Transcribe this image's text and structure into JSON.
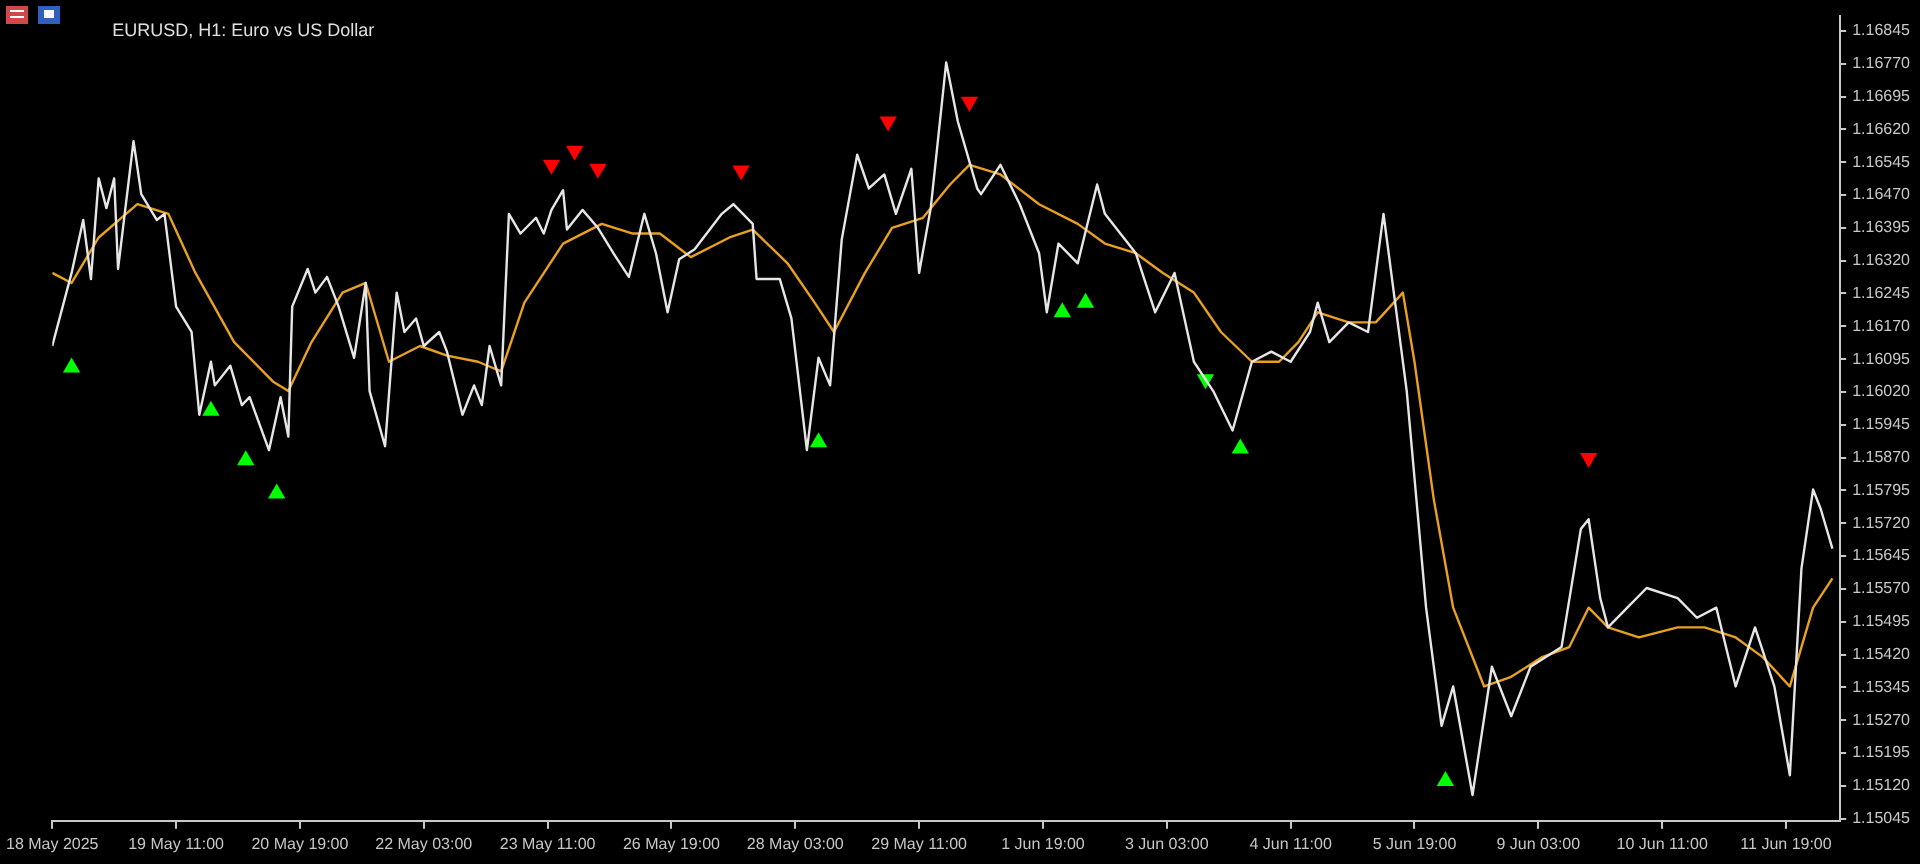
{
  "chart_data": {
    "type": "line",
    "title": "EURUSD, H1: Euro vs US Dollar",
    "categories": [
      "18 May 2025",
      null,
      null,
      null,
      null,
      null,
      null,
      null,
      null,
      null,
      null,
      null,
      null,
      null,
      null,
      null,
      null,
      null,
      null,
      null,
      null,
      null,
      null,
      null,
      null,
      null,
      null,
      null,
      null,
      null,
      null,
      null,
      "19 May 11:00",
      null,
      null,
      null,
      null,
      null,
      null,
      null,
      null,
      null,
      null,
      null,
      null,
      null,
      null,
      null,
      null,
      null,
      null,
      null,
      null,
      null,
      null,
      null,
      null,
      null,
      null,
      null,
      null,
      null,
      null,
      null,
      "20 May 19:00",
      null,
      null,
      null,
      null,
      null,
      null,
      null,
      null,
      null,
      null,
      null,
      null,
      null,
      null,
      null,
      null,
      null,
      null,
      null,
      null,
      null,
      null,
      null,
      null,
      null,
      null,
      null,
      null,
      null,
      null,
      null,
      "22 May 03:00",
      null,
      null,
      null,
      null,
      null,
      null,
      null,
      null,
      null,
      null,
      null,
      null,
      null,
      null,
      null,
      null,
      null,
      null,
      null,
      null,
      null,
      null,
      null,
      null,
      null,
      null,
      null,
      null,
      null,
      null,
      null,
      "23 May 11:00",
      null,
      null,
      null,
      null,
      null,
      null,
      null,
      null,
      null,
      null,
      null,
      null,
      null,
      null,
      null,
      null,
      null,
      null,
      null,
      null,
      null,
      null,
      null,
      null,
      null,
      null,
      null,
      null,
      null,
      null,
      null,
      "26 May 19:00",
      null,
      null,
      null,
      null,
      null,
      null,
      null,
      null,
      null,
      null,
      null,
      null,
      null,
      null,
      null,
      null,
      null,
      null,
      null,
      null,
      null,
      null,
      null,
      null,
      null,
      null,
      null,
      null,
      null,
      null,
      null,
      "28 May 03:00",
      null,
      null,
      null,
      null,
      null,
      null,
      null,
      null,
      null,
      null,
      null,
      null,
      null,
      null,
      null,
      null,
      null,
      null,
      null,
      null,
      null,
      null,
      null,
      null,
      null,
      null,
      null,
      null,
      null,
      null,
      null,
      "29 May 11:00",
      null,
      null,
      null,
      null,
      null,
      null,
      null,
      null,
      null,
      null,
      null,
      null,
      null,
      null,
      null,
      null,
      null,
      null,
      null,
      null,
      null,
      null,
      null,
      null,
      null,
      null,
      null,
      null,
      null,
      null,
      null,
      "1 Jun 19:00",
      null,
      null,
      null,
      null,
      null,
      null,
      null,
      null,
      null,
      null,
      null,
      null,
      null,
      null,
      null,
      null,
      null,
      null,
      null,
      null,
      null,
      null,
      null,
      null,
      null,
      null,
      null,
      null,
      null,
      null,
      null,
      "3 Jun 03:00",
      null,
      null,
      null,
      null,
      null,
      null,
      null,
      null,
      null,
      null,
      null,
      null,
      null,
      null,
      null,
      null,
      null,
      null,
      null,
      null,
      null,
      null,
      null,
      null,
      null,
      null,
      null,
      null,
      null,
      null,
      null,
      "4 Jun 11:00",
      null,
      null,
      null,
      null,
      null,
      null,
      null,
      null,
      null,
      null,
      null,
      null,
      null,
      null,
      null,
      null,
      null,
      null,
      null,
      null,
      null,
      null,
      null,
      null,
      null,
      null,
      null,
      null,
      null,
      null,
      null,
      "5 Jun 19:00",
      null,
      null,
      null,
      null,
      null,
      null,
      null,
      null,
      null,
      null,
      null,
      null,
      null,
      null,
      null,
      null,
      null,
      null,
      null,
      null,
      null,
      null,
      null,
      null,
      null,
      null,
      null,
      null,
      null,
      null,
      null,
      "9 Jun 03:00",
      null,
      null,
      null,
      null,
      null,
      null,
      null,
      null,
      null,
      null,
      null,
      null,
      null,
      null,
      null,
      null,
      null,
      null,
      null,
      null,
      null,
      null,
      null,
      null,
      null,
      null,
      null,
      null,
      null,
      null,
      null,
      "10 Jun 11:00",
      null,
      null,
      null,
      null,
      null,
      null,
      null,
      null,
      null,
      null,
      null,
      null,
      null,
      null,
      null,
      null,
      null,
      null,
      null,
      null,
      null,
      null,
      null,
      null,
      null,
      null,
      null,
      null,
      null,
      null,
      null,
      "11 Jun 19:00",
      null,
      null,
      null,
      null,
      null,
      null,
      null,
      null,
      null,
      null,
      null,
      null,
      null
    ],
    "ylim": [
      1.1504,
      1.1688
    ],
    "yticks": [
      1.16845,
      {
        "value": 1.1677,
        "label": "1.16770"
      },
      1.16695,
      {
        "value": 1.1662,
        "label": "1.16620"
      },
      1.16545,
      {
        "value": 1.1647,
        "label": "1.16470"
      },
      1.16395,
      {
        "value": 1.1632,
        "label": "1.16320"
      },
      1.16245,
      {
        "value": 1.1617,
        "label": "1.16170"
      },
      1.16095,
      {
        "value": 1.1602,
        "label": "1.16020"
      },
      1.15945,
      {
        "value": 1.1587,
        "label": "1.15870"
      },
      1.15795,
      {
        "value": 1.1572,
        "label": "1.15720"
      },
      1.15645,
      {
        "value": 1.1557,
        "label": "1.15570"
      },
      1.15495,
      {
        "value": 1.1542,
        "label": "1.15420"
      },
      1.15345,
      {
        "value": 1.1527,
        "label": "1.15270"
      },
      1.15195,
      {
        "value": 1.1512,
        "label": "1.15120"
      },
      1.15045
    ],
    "grid": false,
    "marker": "none",
    "line_style": "solid",
    "series": [
      {
        "color": "#e6e6e6",
        "values": [
          1.16125,
          null,
          null,
          null,
          null,
          1.16292,
          null,
          null,
          1.16413,
          null,
          1.16278,
          null,
          1.16508,
          null,
          1.1644,
          null,
          1.16508,
          1.16301,
          null,
          null,
          null,
          1.16593,
          null,
          1.16472,
          null,
          null,
          null,
          1.16413,
          null,
          1.16427,
          null,
          null,
          1.16215,
          null,
          null,
          null,
          1.16157,
          null,
          1.15968,
          null,
          null,
          1.16089,
          1.16035,
          null,
          null,
          null,
          1.1608,
          null,
          null,
          1.1599,
          null,
          1.16008,
          null,
          null,
          null,
          null,
          1.15887,
          null,
          null,
          1.16008,
          null,
          1.15918,
          1.16215,
          null,
          null,
          null,
          1.16301,
          null,
          1.16247,
          null,
          null,
          1.16283,
          null,
          null,
          1.16215,
          null,
          null,
          null,
          1.16098,
          null,
          null,
          1.16269,
          1.16022,
          null,
          null,
          null,
          1.15896,
          null,
          null,
          1.16247,
          null,
          1.16157,
          null,
          null,
          1.16188,
          null,
          1.16125,
          null,
          null,
          null,
          1.16157,
          null,
          1.16112,
          null,
          null,
          null,
          1.15968,
          null,
          null,
          1.16035,
          null,
          1.1599,
          null,
          1.16125,
          null,
          null,
          1.16035,
          null,
          1.16427,
          null,
          null,
          1.16382,
          null,
          null,
          null,
          1.16418,
          null,
          1.16382,
          null,
          1.16436,
          null,
          null,
          1.16481,
          1.16391,
          null,
          null,
          null,
          1.16436,
          null,
          null,
          null,
          1.16395,
          null,
          null,
          null,
          1.16337,
          null,
          null,
          null,
          1.16283,
          null,
          null,
          null,
          1.16427,
          null,
          null,
          1.16337,
          null,
          null,
          1.16202,
          null,
          null,
          1.16323,
          null,
          null,
          null,
          1.16346,
          null,
          null,
          null,
          null,
          null,
          null,
          1.16427,
          null,
          null,
          1.16449,
          null,
          null,
          null,
          null,
          1.16404,
          1.16278,
          null,
          null,
          null,
          null,
          null,
          1.16278,
          null,
          null,
          1.16188,
          null,
          null,
          null,
          1.15887,
          null,
          null,
          1.16098,
          null,
          null,
          1.16035,
          null,
          null,
          1.16368,
          null,
          null,
          null,
          1.16562,
          null,
          null,
          1.16485,
          null,
          null,
          null,
          1.16517,
          null,
          null,
          1.16427,
          null,
          null,
          null,
          1.1653,
          null,
          1.16292,
          null,
          null,
          1.1644,
          null,
          null,
          null,
          1.16773,
          null,
          null,
          1.16638,
          null,
          null,
          null,
          null,
          1.16485,
          1.16472,
          null,
          null,
          null,
          null,
          1.16539,
          null,
          null,
          null,
          null,
          1.16449,
          null,
          null,
          null,
          null,
          1.16337,
          null,
          1.16202,
          null,
          null,
          1.16359,
          null,
          null,
          null,
          null,
          1.16314,
          null,
          null,
          null,
          null,
          1.16494,
          null,
          1.16427,
          null,
          null,
          null,
          1.16382,
          null,
          null,
          null,
          1.16337,
          null,
          null,
          null,
          null,
          1.16202,
          null,
          null,
          null,
          null,
          1.16292,
          null,
          null,
          null,
          null,
          1.16089,
          null,
          null,
          null,
          null,
          1.16022,
          null,
          null,
          null,
          null,
          1.15932,
          null,
          null,
          null,
          null,
          1.16089,
          null,
          null,
          null,
          null,
          1.16112,
          null,
          null,
          null,
          null,
          1.16089,
          null,
          null,
          null,
          null,
          1.16157,
          null,
          1.16224,
          null,
          null,
          1.16134,
          null,
          null,
          null,
          null,
          1.16179,
          null,
          null,
          null,
          null,
          1.16157,
          null,
          null,
          null,
          1.16427,
          null,
          null,
          1.16224,
          null,
          null,
          1.16022,
          null,
          null,
          null,
          null,
          1.15527,
          null,
          null,
          null,
          1.15257,
          null,
          null,
          1.15347,
          null,
          null,
          null,
          null,
          1.15099,
          null,
          null,
          null,
          null,
          1.15392,
          null,
          null,
          null,
          null,
          1.15279,
          null,
          null,
          null,
          null,
          1.15392,
          null,
          null,
          null,
          null,
          null,
          null,
          null,
          1.15437,
          null,
          null,
          null,
          null,
          1.15707,
          null,
          1.15729,
          null,
          null,
          1.15549,
          null,
          1.15482,
          null,
          null,
          null,
          null,
          1.15527,
          null,
          null,
          null,
          null,
          1.15572,
          null,
          null,
          null,
          null,
          null,
          null,
          null,
          1.15549,
          null,
          null,
          null,
          null,
          1.15504,
          null,
          null,
          null,
          null,
          1.15527,
          null,
          null,
          null,
          null,
          1.15347,
          null,
          null,
          null,
          null,
          1.15482,
          null,
          null,
          null,
          null,
          1.15347,
          null,
          null,
          null,
          1.15144,
          null,
          null,
          1.15617,
          null,
          null,
          1.15797,
          null,
          1.15752,
          null,
          null,
          1.15662,
          null
        ]
      },
      {
        "color": "#e8a020",
        "values": [
          1.16292,
          null,
          null,
          null,
          null,
          1.16269,
          null,
          null,
          null,
          null,
          null,
          null,
          1.16373,
          null,
          null,
          null,
          null,
          null,
          null,
          null,
          null,
          null,
          1.16449,
          null,
          null,
          null,
          null,
          null,
          null,
          null,
          1.16427,
          null,
          null,
          null,
          null,
          null,
          null,
          1.16292,
          null,
          null,
          null,
          null,
          null,
          null,
          null,
          null,
          null,
          1.16134,
          null,
          null,
          null,
          null,
          null,
          null,
          null,
          null,
          null,
          1.16044,
          null,
          null,
          null,
          1.16022,
          null,
          null,
          null,
          null,
          null,
          1.16134,
          null,
          null,
          null,
          null,
          null,
          null,
          null,
          1.16247,
          null,
          null,
          null,
          null,
          null,
          1.16269,
          null,
          null,
          null,
          null,
          null,
          1.16089,
          null,
          null,
          null,
          null,
          null,
          null,
          null,
          1.16125,
          null,
          null,
          null,
          null,
          null,
          null,
          1.16103,
          null,
          null,
          null,
          null,
          null,
          null,
          null,
          1.16089,
          null,
          null,
          null,
          null,
          null,
          1.16067,
          null,
          null,
          null,
          null,
          null,
          1.16224,
          null,
          null,
          null,
          null,
          null,
          null,
          null,
          null,
          null,
          1.16359,
          null,
          null,
          null,
          null,
          null,
          null,
          null,
          null,
          null,
          1.16404,
          null,
          null,
          null,
          null,
          null,
          null,
          null,
          1.16382,
          null,
          null,
          null,
          null,
          null,
          null,
          1.16382,
          null,
          null,
          null,
          null,
          null,
          null,
          null,
          1.16328,
          null,
          null,
          null,
          null,
          null,
          null,
          null,
          null,
          null,
          1.16373,
          null,
          null,
          null,
          null,
          null,
          1.16391,
          null,
          null,
          null,
          null,
          null,
          null,
          null,
          null,
          1.16314,
          null,
          null,
          null,
          null,
          null,
          null,
          1.16224,
          null,
          null,
          null,
          null,
          1.16157,
          null,
          null,
          null,
          null,
          null,
          null,
          null,
          1.16292,
          null,
          null,
          null,
          null,
          null,
          null,
          1.16395,
          null,
          null,
          null,
          null,
          null,
          null,
          null,
          1.16418,
          null,
          null,
          null,
          null,
          null,
          null,
          1.16494,
          null,
          null,
          null,
          null,
          1.16539,
          null,
          null,
          null,
          null,
          null,
          null,
          null,
          1.16517,
          null,
          null,
          null,
          null,
          null,
          null,
          null,
          null,
          null,
          1.16449,
          null,
          null,
          null,
          null,
          null,
          null,
          null,
          null,
          null,
          1.16404,
          null,
          null,
          null,
          null,
          null,
          null,
          1.16359,
          null,
          null,
          null,
          null,
          null,
          null,
          null,
          1.16337,
          null,
          null,
          null,
          null,
          null,
          null,
          1.16292,
          null,
          null,
          null,
          null,
          null,
          null,
          null,
          1.16247,
          null,
          null,
          null,
          null,
          null,
          null,
          1.16157,
          null,
          null,
          null,
          null,
          null,
          null,
          null,
          1.16089,
          null,
          null,
          null,
          null,
          null,
          null,
          1.16089,
          null,
          null,
          null,
          null,
          1.16134,
          null,
          null,
          null,
          null,
          1.16202,
          null,
          null,
          null,
          null,
          null,
          null,
          null,
          1.16179,
          null,
          null,
          null,
          null,
          null,
          null,
          1.16179,
          null,
          null,
          null,
          null,
          null,
          null,
          1.16247,
          null,
          null,
          1.16089,
          null,
          null,
          null,
          null,
          1.15774,
          null,
          null,
          null,
          null,
          1.15527,
          null,
          null,
          null,
          null,
          null,
          null,
          null,
          1.15347,
          null,
          null,
          null,
          null,
          null,
          null,
          1.15369,
          null,
          null,
          null,
          null,
          null,
          null,
          null,
          1.15414,
          null,
          null,
          null,
          null,
          null,
          null,
          1.15437,
          null,
          null,
          null,
          null,
          1.15527,
          null,
          null,
          null,
          null,
          1.15482,
          null,
          null,
          null,
          null,
          null,
          null,
          null,
          1.15459,
          null,
          null,
          null,
          null,
          null,
          null,
          null,
          null,
          null,
          1.15482,
          null,
          null,
          null,
          null,
          null,
          null,
          1.15482,
          null,
          null,
          null,
          null,
          null,
          null,
          null,
          1.15459,
          null,
          null,
          null,
          null,
          null,
          null,
          1.15414,
          null,
          null,
          null,
          null,
          null,
          null,
          1.15347,
          null,
          null,
          null,
          null,
          null,
          1.15527,
          null,
          null,
          null,
          null,
          1.15594,
          null
        ]
      },
      {
        "type": "scatter",
        "marker": "triangle",
        "color": "#00ff00",
        "values": [
          null,
          null,
          null,
          null,
          null,
          1.16076,
          null,
          null,
          null,
          null,
          null,
          null,
          null,
          null,
          null,
          null,
          null,
          null,
          null,
          null,
          null,
          null,
          null,
          null,
          null,
          null,
          null,
          null,
          null,
          null,
          null,
          null,
          null,
          null,
          null,
          null,
          null,
          null,
          null,
          null,
          null,
          1.15977,
          null,
          null,
          null,
          null,
          null,
          null,
          null,
          null,
          1.15864,
          null,
          null,
          null,
          null,
          null,
          null,
          null,
          1.15788,
          null,
          null,
          null,
          null,
          null,
          null,
          null,
          null,
          null,
          null,
          null,
          null,
          null,
          null,
          null,
          null,
          null,
          null,
          null,
          null,
          null,
          null,
          null,
          null,
          null,
          null,
          null,
          null,
          null,
          null,
          null,
          null,
          null,
          null,
          null,
          null,
          null,
          null,
          null,
          null,
          null,
          null,
          null,
          null,
          null,
          null,
          null,
          null,
          null,
          null,
          null,
          null,
          null,
          null,
          null,
          null,
          null,
          null,
          null,
          null,
          null,
          null,
          null,
          null,
          null,
          null,
          null,
          null,
          null,
          null,
          null,
          null,
          null,
          null,
          null,
          null,
          null,
          null,
          null,
          null,
          null,
          null,
          null,
          null,
          null,
          null,
          null,
          null,
          null,
          null,
          null,
          null,
          null,
          null,
          null,
          null,
          null,
          null,
          null,
          null,
          null,
          null,
          null,
          null,
          null,
          null,
          null,
          null,
          null,
          null,
          null,
          null,
          null,
          null,
          null,
          null,
          null,
          null,
          null,
          null,
          null,
          null,
          null,
          null,
          null,
          null,
          null,
          null,
          null,
          null,
          null,
          null,
          null,
          null,
          null,
          null,
          null,
          null,
          null,
          1.15905,
          null,
          null,
          null,
          null,
          null,
          null,
          null,
          null,
          null,
          null,
          null,
          null,
          null,
          null,
          null,
          null,
          null,
          null,
          null,
          null,
          null,
          null,
          null,
          null,
          null,
          null,
          null,
          null,
          null,
          null,
          null,
          null,
          null,
          null,
          null,
          null,
          null,
          null,
          null,
          null,
          null,
          null,
          null,
          null,
          null,
          null,
          null,
          null,
          null,
          null,
          null,
          null,
          null,
          null,
          null,
          null,
          null,
          null,
          null,
          null,
          null,
          null,
          1.16202,
          null,
          null,
          null,
          null,
          null,
          1.16224,
          null,
          null,
          null,
          null,
          null,
          null,
          null,
          null,
          null,
          null,
          null,
          null,
          null,
          null,
          null,
          null,
          null,
          null,
          null,
          null,
          null,
          null,
          null,
          null,
          null,
          null,
          null,
          null,
          null,
          null,
          1.16049,
          null,
          null,
          null,
          null,
          null,
          null,
          null,
          null,
          1.15891,
          null,
          null,
          null,
          null,
          null,
          null,
          null,
          null,
          null,
          null,
          null,
          null,
          null,
          null,
          null,
          null,
          null,
          null,
          null,
          null,
          null,
          null,
          null,
          null,
          null,
          null,
          null,
          null,
          null,
          null,
          null,
          null,
          null,
          null,
          null,
          null,
          null,
          null,
          null,
          null,
          null,
          null,
          null,
          null,
          null,
          null,
          null,
          null,
          null,
          null,
          null,
          null,
          1.15131,
          null,
          null,
          null,
          null,
          null,
          null,
          null,
          null,
          null,
          null,
          null,
          null,
          null,
          null,
          null,
          null,
          null,
          null,
          null,
          null,
          null,
          null,
          null,
          null,
          null,
          null,
          null,
          null,
          null,
          null,
          null,
          null,
          null,
          null,
          null,
          null,
          null,
          null,
          null,
          null,
          null,
          null,
          null,
          null,
          null,
          null,
          null,
          null,
          null,
          null,
          null,
          null,
          null,
          null,
          null,
          null,
          null,
          null,
          null,
          null,
          null,
          null,
          null,
          null,
          null,
          null,
          null,
          null,
          null,
          null,
          null,
          null,
          null,
          null,
          null,
          null,
          null,
          null,
          null,
          null,
          null,
          null,
          null,
          null,
          null,
          null,
          null,
          null,
          null,
          null,
          null,
          null,
          null,
          null,
          null,
          null,
          null,
          null,
          null,
          null,
          null
        ]
      },
      {
        "type": "scatter",
        "marker": "triangle",
        "color": "#ff0000",
        "values": [
          null,
          null,
          null,
          null,
          null,
          null,
          null,
          null,
          null,
          null,
          null,
          null,
          null,
          null,
          null,
          null,
          null,
          null,
          null,
          null,
          null,
          null,
          null,
          null,
          null,
          null,
          null,
          null,
          null,
          null,
          null,
          null,
          null,
          null,
          null,
          null,
          null,
          null,
          null,
          null,
          null,
          null,
          null,
          null,
          null,
          null,
          null,
          null,
          null,
          null,
          null,
          null,
          null,
          null,
          null,
          null,
          null,
          null,
          null,
          null,
          null,
          null,
          null,
          null,
          null,
          null,
          null,
          null,
          null,
          null,
          null,
          null,
          null,
          null,
          null,
          null,
          null,
          null,
          null,
          null,
          null,
          null,
          null,
          null,
          null,
          null,
          null,
          null,
          null,
          null,
          null,
          null,
          null,
          null,
          null,
          null,
          null,
          null,
          null,
          null,
          null,
          null,
          null,
          null,
          null,
          null,
          null,
          null,
          null,
          null,
          null,
          null,
          null,
          null,
          null,
          null,
          null,
          null,
          null,
          null,
          null,
          null,
          null,
          null,
          null,
          null,
          null,
          null,
          null,
          1.16539,
          null,
          null,
          null,
          null,
          null,
          1.16571,
          null,
          null,
          null,
          null,
          null,
          1.1653,
          null,
          null,
          null,
          null,
          null,
          null,
          null,
          null,
          null,
          null,
          null,
          null,
          null,
          null,
          null,
          null,
          null,
          null,
          null,
          null,
          null,
          null,
          null,
          null,
          null,
          null,
          null,
          null,
          null,
          null,
          null,
          null,
          null,
          null,
          null,
          null,
          1.16526,
          null,
          null,
          null,
          null,
          null,
          null,
          null,
          null,
          null,
          null,
          null,
          null,
          null,
          null,
          null,
          null,
          null,
          null,
          null,
          null,
          null,
          null,
          null,
          null,
          null,
          null,
          null,
          null,
          null,
          null,
          null,
          null,
          null,
          null,
          null,
          null,
          null,
          1.16638,
          null,
          null,
          null,
          null,
          null,
          null,
          null,
          null,
          null,
          null,
          null,
          null,
          null,
          null,
          null,
          null,
          null,
          null,
          null,
          null,
          1.16683,
          null,
          null,
          null,
          null,
          null,
          null,
          null,
          null,
          null,
          null,
          null,
          null,
          null,
          null,
          null,
          null,
          null,
          null,
          null,
          null,
          null,
          null,
          null,
          null,
          null,
          null,
          null,
          null,
          null,
          null,
          null,
          null,
          null,
          null,
          null,
          null,
          null,
          null,
          null,
          null,
          null,
          null,
          null,
          null,
          null,
          null,
          null,
          null,
          null,
          null,
          null,
          null,
          null,
          null,
          null,
          null,
          null,
          null,
          null,
          null,
          null,
          null,
          null,
          null,
          null,
          null,
          null,
          null,
          null,
          null,
          null,
          null,
          null,
          null,
          null,
          null,
          null,
          null,
          null,
          null,
          null,
          null,
          null,
          null,
          null,
          null,
          null,
          null,
          null,
          null,
          null,
          null,
          null,
          null,
          null,
          null,
          null,
          null,
          null,
          null,
          null,
          null,
          null,
          null,
          null,
          null,
          null,
          null,
          null,
          null,
          null,
          null,
          null,
          null,
          null,
          null,
          null,
          null,
          null,
          null,
          null,
          null,
          null,
          null,
          null,
          null,
          null,
          null,
          null,
          null,
          null,
          null,
          null,
          null,
          null,
          null,
          null,
          null,
          null,
          null,
          null,
          null,
          null,
          null,
          null,
          null,
          null,
          null,
          null,
          null,
          null,
          null,
          null,
          null,
          null,
          null,
          null,
          null,
          null,
          1.15869,
          null,
          null,
          null,
          null,
          null,
          null,
          null,
          null,
          null,
          null,
          null,
          null,
          null,
          null,
          null,
          null,
          null,
          null,
          null,
          null,
          null,
          null,
          null,
          null,
          null,
          null,
          null,
          null,
          null,
          null,
          null,
          null,
          null,
          null,
          null,
          null,
          null,
          null,
          null,
          null,
          null,
          null,
          null,
          null,
          null,
          null,
          null,
          null,
          null,
          null,
          null,
          null,
          null,
          null,
          null,
          null,
          null,
          null,
          null,
          null,
          null,
          null,
          null,
          null
        ]
      }
    ]
  }
}
